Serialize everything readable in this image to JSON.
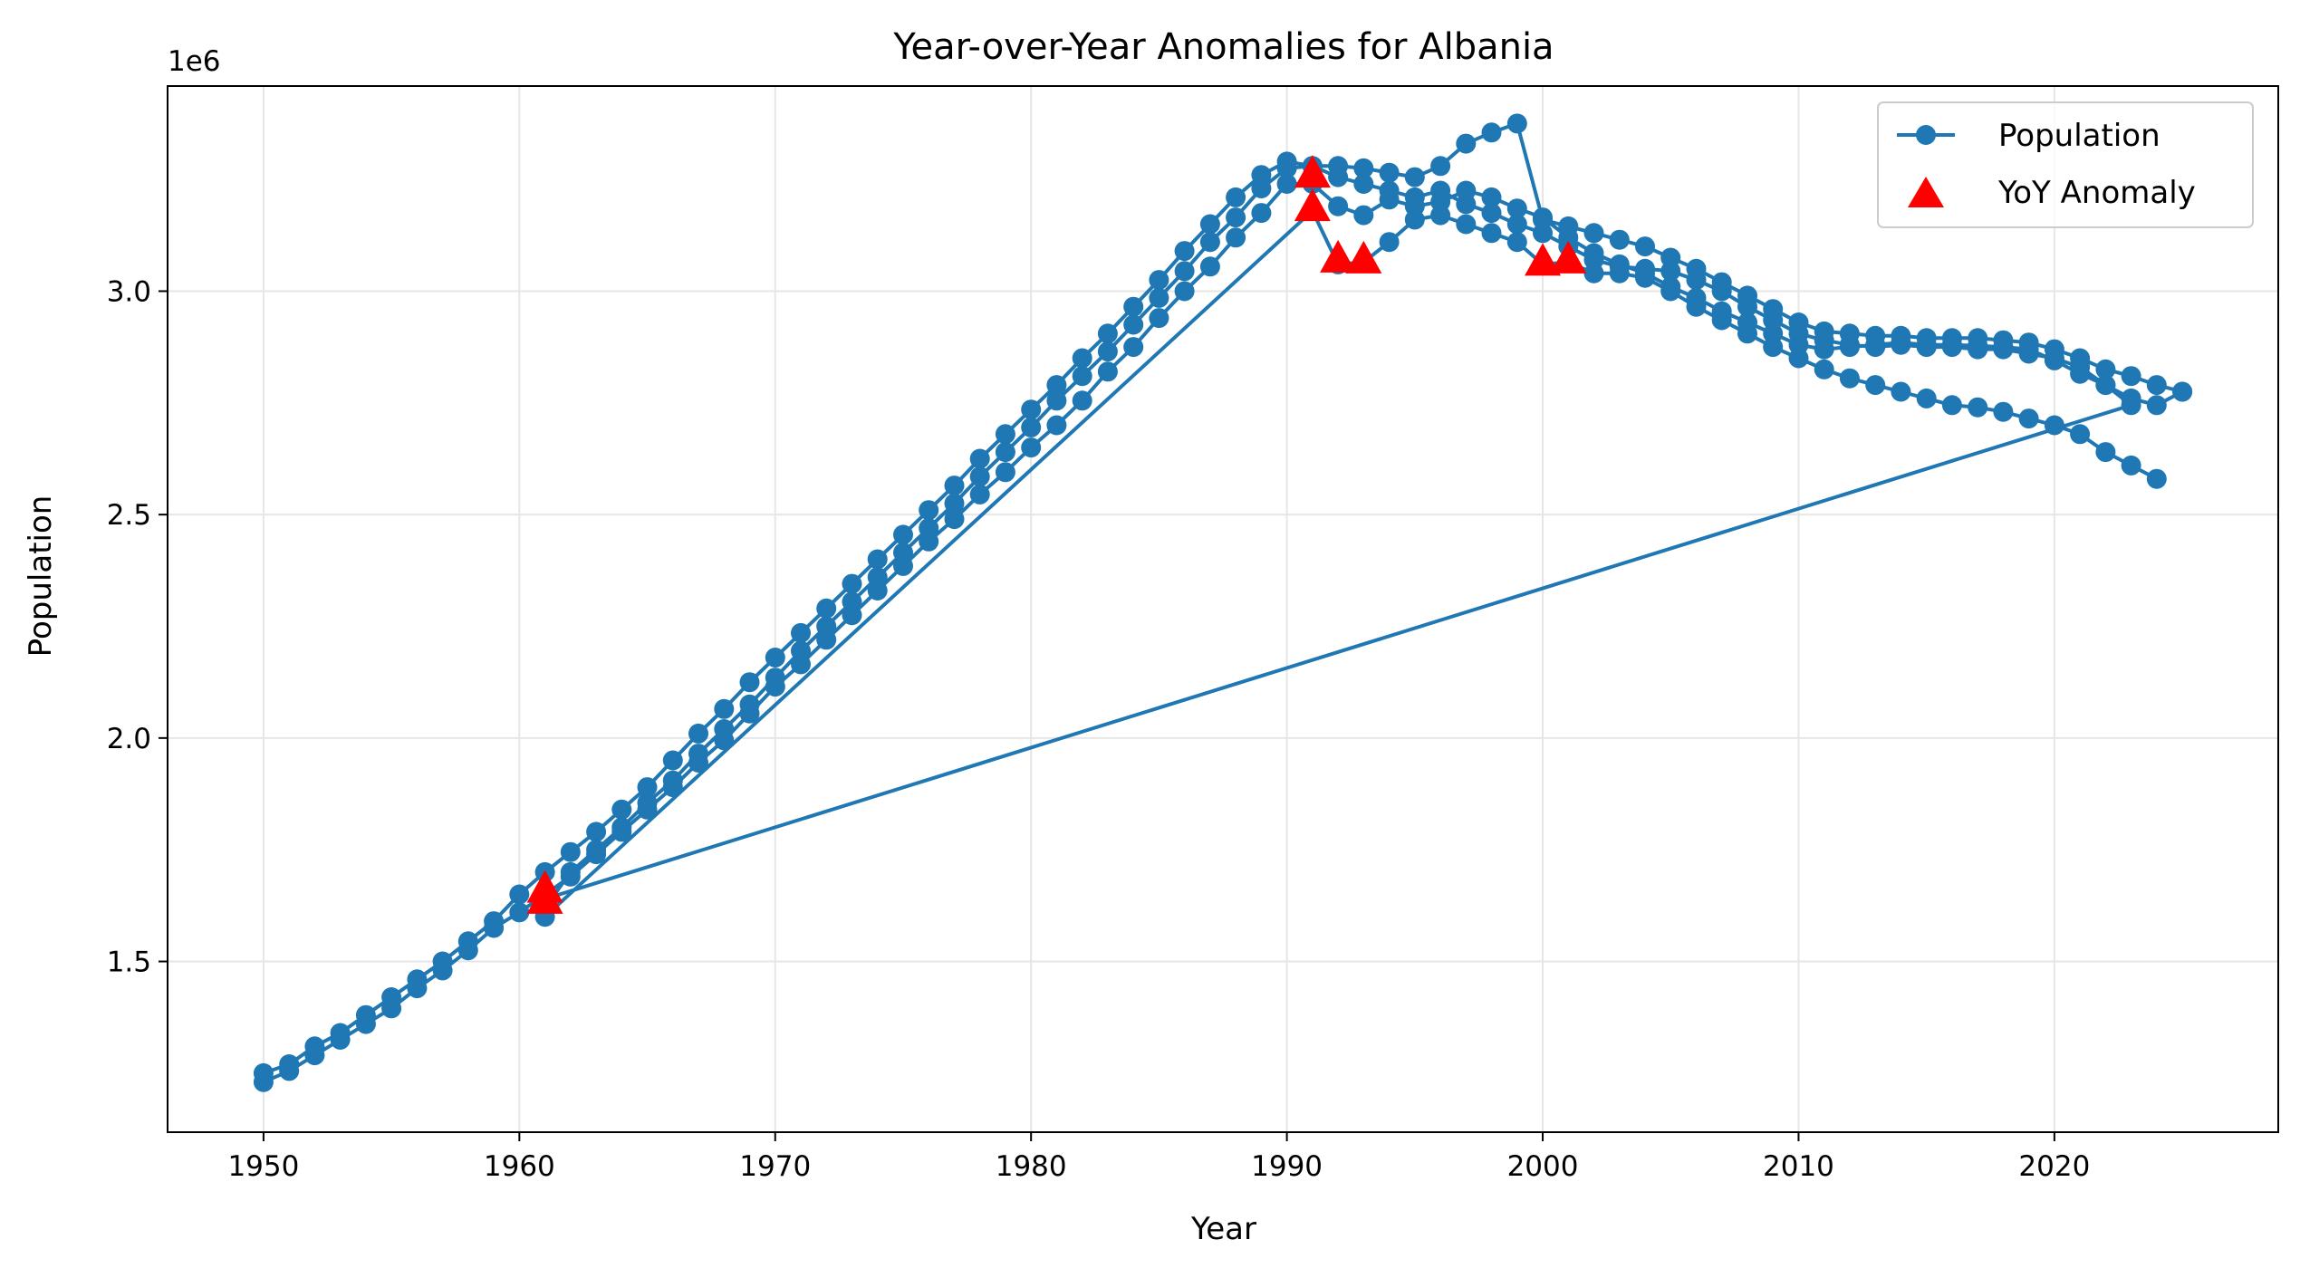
{
  "chart_data": {
    "type": "line",
    "title": "Year-over-Year Anomalies for Albania",
    "xlabel": "Year",
    "ylabel": "Population",
    "y_scale_label": "1e6",
    "xlim": [
      1946.25,
      2028.75
    ],
    "ylim": [
      1118000,
      3459000
    ],
    "xticks": [
      1950,
      1960,
      1970,
      1980,
      1990,
      2000,
      2010,
      2020
    ],
    "yticks": [
      1500000,
      2000000,
      2500000,
      3000000
    ],
    "ytick_labels": [
      "1.5",
      "2.0",
      "2.5",
      "3.0"
    ],
    "grid": true,
    "legend_position": "top-right",
    "colors": {
      "line": "#1f77b4",
      "anomaly": "#ff0000",
      "grid": "#e6e6e6"
    },
    "series": [
      {
        "name": "Population",
        "style": "line-marker",
        "segments": [
          {
            "x": [
              1950,
              1951,
              1952,
              1953,
              1954,
              1955,
              1956,
              1957,
              1958,
              1959,
              1960,
              1961,
              1962,
              1963,
              1964,
              1965,
              1966,
              1967,
              1968,
              1969,
              1970,
              1971,
              1972,
              1973,
              1974,
              1975,
              1976,
              1977,
              1978,
              1979,
              1980,
              1981,
              1982,
              1983,
              1984,
              1985,
              1986,
              1987,
              1988,
              1989,
              1990,
              1991,
              1992,
              1993,
              1994,
              1995,
              1996,
              1997,
              1998,
              1999,
              2000,
              2001,
              2002,
              2003,
              2004,
              2005,
              2006,
              2007,
              2008,
              2009,
              2010,
              2011,
              2012,
              2013,
              2014,
              2015,
              2016,
              2017,
              2018,
              2019,
              2020,
              2021,
              2022,
              2023,
              2024,
              2025
            ],
            "y": [
              1250000,
              1270000,
              1310000,
              1340000,
              1380000,
              1420000,
              1460000,
              1500000,
              1545000,
              1590000,
              1650000,
              1700000,
              1745000,
              1790000,
              1840000,
              1890000,
              1950000,
              2010000,
              2065000,
              2125000,
              2180000,
              2235000,
              2290000,
              2345000,
              2400000,
              2455000,
              2510000,
              2565000,
              2625000,
              2680000,
              2735000,
              2790000,
              2850000,
              2905000,
              2965000,
              3025000,
              3090000,
              3150000,
              3210000,
              3260000,
              3290000,
              3280000,
              3280000,
              3275000,
              3265000,
              3255000,
              3280000,
              3330000,
              3355000,
              3375000,
              3160000,
              3145000,
              3130000,
              3115000,
              3100000,
              3075000,
              3050000,
              3020000,
              2990000,
              2960000,
              2930000,
              2910000,
              2905000,
              2900000,
              2900000,
              2895000,
              2895000,
              2895000,
              2890000,
              2885000,
              2870000,
              2850000,
              2825000,
              2810000,
              2790000,
              2775000
            ]
          },
          {
            "x": [
              1950,
              1951,
              1952,
              1953,
              1954,
              1955,
              1956,
              1957,
              1958,
              1959,
              1960,
              1961,
              1962,
              1963,
              1964,
              1965,
              1966,
              1967,
              1968,
              1969,
              1970,
              1971,
              1972,
              1973,
              1974,
              1975,
              1976,
              1977,
              1978,
              1979,
              1980,
              1981,
              1982,
              1983,
              1984,
              1985,
              1986,
              1987,
              1988,
              1989,
              1990,
              1991,
              1992,
              1993,
              1994,
              1995,
              1996,
              1997,
              1998,
              1999,
              2000,
              2001,
              2002,
              2003,
              2004,
              2005,
              2006,
              2007,
              2008,
              2009,
              2010,
              2011,
              2012,
              2013,
              2014,
              2015,
              2016,
              2017,
              2018,
              2019,
              2020,
              2021,
              2022,
              2023,
              2024,
              2025
            ],
            "y": [
              1230000,
              1255000,
              1290000,
              1325000,
              1360000,
              1395000,
              1440000,
              1480000,
              1525000,
              1575000,
              1610000,
              1650000,
              1690000,
              1740000,
              1790000,
              1840000,
              1890000,
              1945000,
              1995000,
              2055000,
              2115000,
              2165000,
              2220000,
              2275000,
              2330000,
              2385000,
              2440000,
              2490000,
              2545000,
              2595000,
              2650000,
              2700000,
              2755000,
              2820000,
              2875000,
              2940000,
              3000000,
              3055000,
              3120000,
              3175000,
              3240000,
              3240000,
              3190000,
              3170000,
              3205000,
              3190000,
              3200000,
              3225000,
              3210000,
              3185000,
              3165000,
              3120000,
              3085000,
              3060000,
              3040000,
              3010000,
              2985000,
              2955000,
              2930000,
              2905000,
              2880000,
              2870000,
              2875000,
              2880000,
              2885000,
              2880000,
              2880000,
              2878000,
              2875000,
              2870000,
              2845000,
              2815000,
              2790000,
              2760000,
              2745000,
              2775000
            ]
          },
          {
            "x": [
              1961,
              1962,
              1963,
              1964,
              1965,
              1966,
              1967,
              1968,
              1969,
              1970,
              1971,
              1972,
              1973,
              1974,
              1975,
              1976,
              1977,
              1978,
              1979,
              1980,
              1981,
              1982,
              1983,
              1984,
              1985,
              1986,
              1987,
              1988,
              1989,
              1990,
              1991,
              1992,
              1993,
              1994,
              1995,
              1996,
              1997,
              1998,
              1999,
              2000,
              2001,
              2002,
              2003,
              2004,
              2005,
              2006,
              2007,
              2008,
              2009,
              2010,
              2011,
              2012,
              2013,
              2014,
              2015,
              2016,
              2017,
              2018,
              2019,
              2020,
              2021,
              2022,
              2023,
              1961
            ],
            "y": [
              1620000,
              1700000,
              1750000,
              1800000,
              1855000,
              1905000,
              1965000,
              2020000,
              2075000,
              2135000,
              2195000,
              2250000,
              2305000,
              2360000,
              2415000,
              2470000,
              2525000,
              2585000,
              2640000,
              2695000,
              2755000,
              2810000,
              2865000,
              2925000,
              2985000,
              3045000,
              3110000,
              3165000,
              3230000,
              3275000,
              3280000,
              3255000,
              3240000,
              3225000,
              3210000,
              3225000,
              3195000,
              3175000,
              3150000,
              3130000,
              3100000,
              3070000,
              3055000,
              3050000,
              3045000,
              3025000,
              3000000,
              2965000,
              2935000,
              2905000,
              2890000,
              2880000,
              2875000,
              2880000,
              2875000,
              2875000,
              2870000,
              2870000,
              2860000,
              2850000,
              2830000,
              2790000,
              2745000,
              1640000
            ]
          },
          {
            "x": [
              1961,
              1991,
              1992,
              1993,
              1994,
              1995,
              1996,
              1997,
              1998,
              1999,
              2000,
              2001,
              2002,
              2003,
              2004,
              2005,
              2006,
              2007,
              2008,
              2009,
              2010,
              2011,
              2012,
              2013,
              2014,
              2015,
              2016,
              2017,
              2018,
              2019,
              2020,
              2021,
              2022,
              2023,
              2024
            ],
            "y": [
              1600000,
              3180000,
              3060000,
              3065000,
              3110000,
              3160000,
              3170000,
              3150000,
              3130000,
              3110000,
              3060000,
              3065000,
              3040000,
              3040000,
              3030000,
              3000000,
              2965000,
              2935000,
              2905000,
              2875000,
              2850000,
              2825000,
              2805000,
              2790000,
              2775000,
              2760000,
              2745000,
              2740000,
              2730000,
              2715000,
              2700000,
              2680000,
              2640000,
              2610000,
              2580000
            ]
          }
        ]
      },
      {
        "name": "YoY Anomaly",
        "style": "triangle-marker",
        "x": [
          1961,
          1961,
          1991,
          1991,
          1992,
          1993,
          2000,
          2001
        ],
        "y": [
          1660000,
          1635000,
          3260000,
          3185000,
          3070000,
          3068000,
          3063000,
          3068000
        ]
      }
    ]
  }
}
